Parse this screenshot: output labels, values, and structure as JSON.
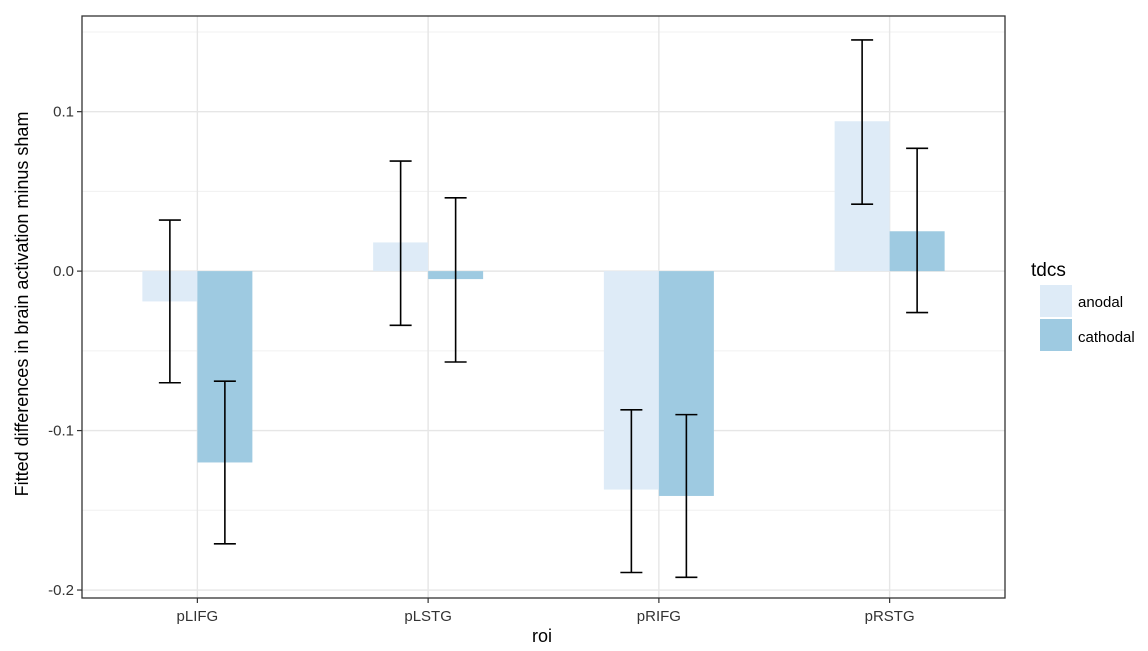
{
  "chart_data": {
    "type": "bar",
    "xlabel": "roi",
    "ylabel": "Fitted differences in brain activation minus sham",
    "categories": [
      "pLIFG",
      "pLSTG",
      "pRIFG",
      "pRSTG"
    ],
    "ylim": [
      -0.205,
      0.16
    ],
    "yticks": [
      -0.2,
      -0.1,
      0.0,
      0.1
    ],
    "ytick_labels": [
      "-0.2",
      "-0.1",
      "0.0",
      "0.1"
    ],
    "grid": true,
    "legend": {
      "title": "tdcs",
      "placement": "right"
    },
    "series": [
      {
        "name": "anodal",
        "color": "#deebf7",
        "values": [
          -0.019,
          0.018,
          -0.137,
          0.094
        ],
        "error_low": [
          -0.07,
          -0.034,
          -0.189,
          0.042
        ],
        "error_high": [
          0.032,
          0.069,
          -0.087,
          0.145
        ]
      },
      {
        "name": "cathodal",
        "color": "#9ecae1",
        "values": [
          -0.12,
          -0.005,
          -0.141,
          0.025
        ],
        "error_low": [
          -0.171,
          -0.057,
          -0.192,
          -0.026
        ],
        "error_high": [
          -0.069,
          0.046,
          -0.09,
          0.077
        ]
      }
    ]
  }
}
